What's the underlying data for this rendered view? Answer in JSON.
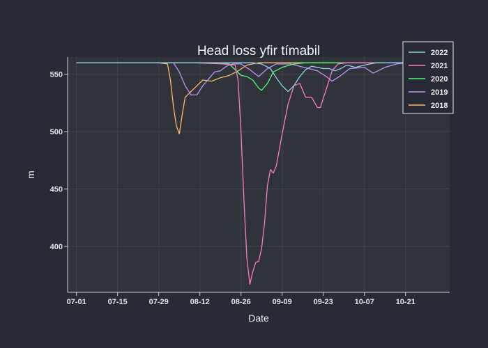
{
  "chart_data": {
    "type": "line",
    "title": "Head loss yfir tímabil",
    "xlabel": "Date",
    "ylabel": "m",
    "x_range": [
      "2000-06-28",
      "2000-11-05"
    ],
    "ylim": [
      360,
      565
    ],
    "x_ticks": [
      {
        "date": "2000-07-01",
        "label": "07-01"
      },
      {
        "date": "2000-07-15",
        "label": "07-15"
      },
      {
        "date": "2000-07-29",
        "label": "07-29"
      },
      {
        "date": "2000-08-12",
        "label": "08-12"
      },
      {
        "date": "2000-08-26",
        "label": "08-26"
      },
      {
        "date": "2000-09-09",
        "label": "09-09"
      },
      {
        "date": "2000-09-23",
        "label": "09-23"
      },
      {
        "date": "2000-10-07",
        "label": "10-07"
      },
      {
        "date": "2000-10-21",
        "label": "10-21"
      }
    ],
    "y_ticks": [
      400,
      450,
      500,
      550
    ],
    "grid": true,
    "legend_position": "top-right",
    "colors": {
      "background": "#282a36",
      "plot_background": "#30343a",
      "grid": "#3f434a",
      "axis": "#d0d0d0"
    },
    "series": [
      {
        "name": "2022",
        "color": "#8fd3e8",
        "points": [
          [
            "2000-07-01",
            560
          ],
          [
            "2000-08-01",
            560
          ],
          [
            "2000-08-20",
            560
          ],
          [
            "2000-08-30",
            560
          ],
          [
            "2000-09-02",
            559
          ],
          [
            "2000-09-05",
            555
          ],
          [
            "2000-09-07",
            547
          ],
          [
            "2000-09-09",
            540
          ],
          [
            "2000-09-11",
            535
          ],
          [
            "2000-09-13",
            540
          ],
          [
            "2000-09-15",
            548
          ],
          [
            "2000-09-17",
            554
          ],
          [
            "2000-09-19",
            557
          ],
          [
            "2000-09-21",
            556
          ],
          [
            "2000-09-23",
            555
          ],
          [
            "2000-09-25",
            555
          ],
          [
            "2000-09-27",
            553
          ],
          [
            "2000-09-29",
            555
          ],
          [
            "2000-10-01",
            558
          ],
          [
            "2000-10-04",
            556
          ],
          [
            "2000-10-07",
            558
          ],
          [
            "2000-10-11",
            560
          ],
          [
            "2000-10-17",
            560
          ],
          [
            "2000-10-21",
            560
          ],
          [
            "2000-10-25",
            560
          ]
        ]
      },
      {
        "name": "2021",
        "color": "#ff79c6",
        "points": [
          [
            "2000-07-01",
            560
          ],
          [
            "2000-08-10",
            560
          ],
          [
            "2000-08-20",
            559
          ],
          [
            "2000-08-24",
            558
          ],
          [
            "2000-08-25",
            545
          ],
          [
            "2000-08-26",
            500
          ],
          [
            "2000-08-27",
            440
          ],
          [
            "2000-08-28",
            390
          ],
          [
            "2000-08-29",
            367
          ],
          [
            "2000-08-30",
            378
          ],
          [
            "2000-08-31",
            386
          ],
          [
            "2000-09-01",
            387
          ],
          [
            "2000-09-02",
            398
          ],
          [
            "2000-09-03",
            420
          ],
          [
            "2000-09-04",
            453
          ],
          [
            "2000-09-05",
            467
          ],
          [
            "2000-09-06",
            464
          ],
          [
            "2000-09-07",
            470
          ],
          [
            "2000-09-09",
            498
          ],
          [
            "2000-09-11",
            524
          ],
          [
            "2000-09-13",
            540
          ],
          [
            "2000-09-15",
            542
          ],
          [
            "2000-09-17",
            530
          ],
          [
            "2000-09-19",
            530
          ],
          [
            "2000-09-21",
            521
          ],
          [
            "2000-09-22",
            521
          ],
          [
            "2000-09-24",
            537
          ],
          [
            "2000-09-26",
            553
          ],
          [
            "2000-09-28",
            559
          ],
          [
            "2000-10-01",
            560
          ],
          [
            "2000-10-21",
            560
          ],
          [
            "2000-10-25",
            560
          ]
        ]
      },
      {
        "name": "2020",
        "color": "#50fa7b",
        "points": [
          [
            "2000-07-01",
            560
          ],
          [
            "2000-08-12",
            560
          ],
          [
            "2000-08-22",
            559
          ],
          [
            "2000-08-26",
            549
          ],
          [
            "2000-08-28",
            548
          ],
          [
            "2000-08-30",
            545
          ],
          [
            "2000-09-01",
            538
          ],
          [
            "2000-09-02",
            536
          ],
          [
            "2000-09-04",
            542
          ],
          [
            "2000-09-06",
            552
          ],
          [
            "2000-09-09",
            556
          ],
          [
            "2000-09-13",
            559
          ],
          [
            "2000-09-17",
            560
          ],
          [
            "2000-10-21",
            560
          ],
          [
            "2000-10-25",
            560
          ]
        ]
      },
      {
        "name": "2019",
        "color": "#bd93f9",
        "points": [
          [
            "2000-07-01",
            560
          ],
          [
            "2000-08-03",
            560
          ],
          [
            "2000-08-05",
            552
          ],
          [
            "2000-08-07",
            540
          ],
          [
            "2000-08-09",
            532
          ],
          [
            "2000-08-11",
            532
          ],
          [
            "2000-08-13",
            540
          ],
          [
            "2000-08-15",
            546
          ],
          [
            "2000-08-17",
            552
          ],
          [
            "2000-08-19",
            553
          ],
          [
            "2000-08-21",
            557
          ],
          [
            "2000-08-23",
            559
          ],
          [
            "2000-08-26",
            559
          ],
          [
            "2000-08-29",
            554
          ],
          [
            "2000-09-01",
            548
          ],
          [
            "2000-09-04",
            555
          ],
          [
            "2000-09-07",
            559
          ],
          [
            "2000-09-12",
            559
          ],
          [
            "2000-09-15",
            557
          ],
          [
            "2000-09-18",
            555
          ],
          [
            "2000-09-21",
            553
          ],
          [
            "2000-09-24",
            548
          ],
          [
            "2000-09-26",
            544
          ],
          [
            "2000-09-29",
            549
          ],
          [
            "2000-10-02",
            555
          ],
          [
            "2000-10-07",
            556
          ],
          [
            "2000-10-10",
            551
          ],
          [
            "2000-10-14",
            556
          ],
          [
            "2000-10-18",
            559
          ],
          [
            "2000-10-21",
            560
          ],
          [
            "2000-10-25",
            560
          ]
        ]
      },
      {
        "name": "2018",
        "color": "#ffb86c",
        "points": [
          [
            "2000-07-01",
            560
          ],
          [
            "2000-07-29",
            560
          ],
          [
            "2000-08-01",
            559
          ],
          [
            "2000-08-02",
            545
          ],
          [
            "2000-08-03",
            522
          ],
          [
            "2000-08-04",
            505
          ],
          [
            "2000-08-05",
            498
          ],
          [
            "2000-08-06",
            515
          ],
          [
            "2000-08-07",
            530
          ],
          [
            "2000-08-09",
            535
          ],
          [
            "2000-08-11",
            540
          ],
          [
            "2000-08-13",
            545
          ],
          [
            "2000-08-16",
            544
          ],
          [
            "2000-08-19",
            547
          ],
          [
            "2000-08-22",
            549
          ],
          [
            "2000-08-25",
            553
          ],
          [
            "2000-08-28",
            558
          ],
          [
            "2000-09-01",
            560
          ],
          [
            "2000-10-21",
            560
          ],
          [
            "2000-10-25",
            560
          ]
        ]
      }
    ]
  }
}
